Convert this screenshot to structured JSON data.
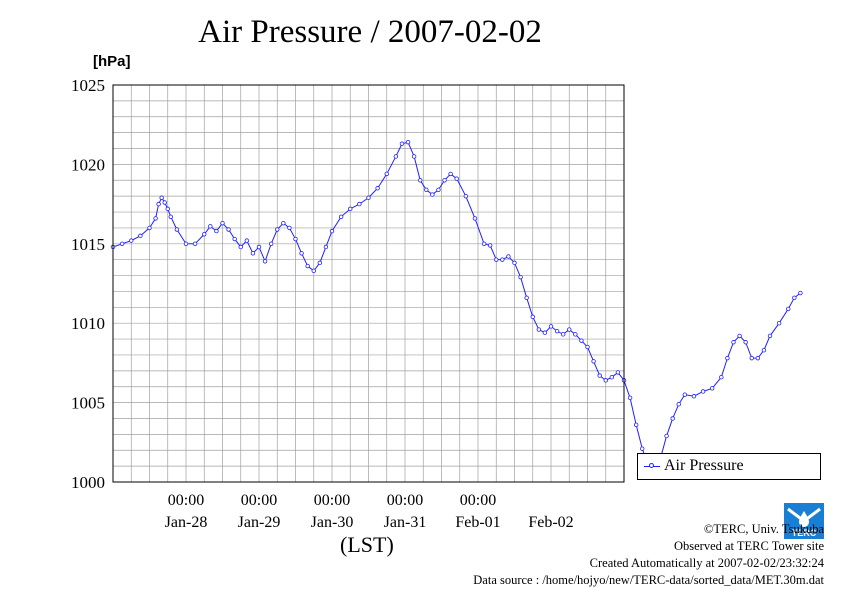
{
  "chart_data": {
    "type": "line",
    "title": "Air Pressure / 2007-02-02",
    "ylabel": "[hPa]",
    "xlabel": "(LST)",
    "ylim": [
      1000,
      1025
    ],
    "yticks": [
      1000,
      1005,
      1010,
      1015,
      1020,
      1025
    ],
    "xlim": [
      "2007-01-27T00:00",
      "2007-02-03T00:00"
    ],
    "xtick_top_labels": [
      "00:00",
      "00:00",
      "00:00",
      "00:00",
      "00:00"
    ],
    "xtick_bottom_labels": [
      "Jan-28",
      "Jan-29",
      "Jan-30",
      "Jan-31",
      "Feb-01",
      "Feb-02"
    ],
    "grid": true,
    "legend_position": "lower-right outside",
    "series": [
      {
        "name": "Air Pressure",
        "color": "#2020ff",
        "marker": "open-circle",
        "points": [
          [
            "2007-01-27T00:00",
            1014.8
          ],
          [
            "2007-01-27T03:00",
            1015.0
          ],
          [
            "2007-01-27T06:00",
            1015.2
          ],
          [
            "2007-01-27T09:00",
            1015.5
          ],
          [
            "2007-01-27T12:00",
            1016.0
          ],
          [
            "2007-01-27T14:00",
            1016.6
          ],
          [
            "2007-01-27T15:00",
            1017.5
          ],
          [
            "2007-01-27T16:00",
            1017.9
          ],
          [
            "2007-01-27T17:00",
            1017.6
          ],
          [
            "2007-01-27T18:00",
            1017.2
          ],
          [
            "2007-01-27T19:00",
            1016.7
          ],
          [
            "2007-01-27T21:00",
            1015.9
          ],
          [
            "2007-01-28T00:00",
            1015.0
          ],
          [
            "2007-01-28T03:00",
            1015.0
          ],
          [
            "2007-01-28T06:00",
            1015.6
          ],
          [
            "2007-01-28T08:00",
            1016.1
          ],
          [
            "2007-01-28T10:00",
            1015.8
          ],
          [
            "2007-01-28T12:00",
            1016.3
          ],
          [
            "2007-01-28T14:00",
            1015.9
          ],
          [
            "2007-01-28T16:00",
            1015.3
          ],
          [
            "2007-01-28T18:00",
            1014.8
          ],
          [
            "2007-01-28T20:00",
            1015.2
          ],
          [
            "2007-01-28T22:00",
            1014.4
          ],
          [
            "2007-01-29T00:00",
            1014.8
          ],
          [
            "2007-01-29T02:00",
            1013.9
          ],
          [
            "2007-01-29T04:00",
            1015.0
          ],
          [
            "2007-01-29T06:00",
            1015.9
          ],
          [
            "2007-01-29T08:00",
            1016.3
          ],
          [
            "2007-01-29T10:00",
            1016.0
          ],
          [
            "2007-01-29T12:00",
            1015.3
          ],
          [
            "2007-01-29T14:00",
            1014.4
          ],
          [
            "2007-01-29T16:00",
            1013.6
          ],
          [
            "2007-01-29T18:00",
            1013.3
          ],
          [
            "2007-01-29T20:00",
            1013.8
          ],
          [
            "2007-01-29T22:00",
            1014.8
          ],
          [
            "2007-01-30T00:00",
            1015.8
          ],
          [
            "2007-01-30T03:00",
            1016.7
          ],
          [
            "2007-01-30T06:00",
            1017.2
          ],
          [
            "2007-01-30T09:00",
            1017.5
          ],
          [
            "2007-01-30T12:00",
            1017.9
          ],
          [
            "2007-01-30T15:00",
            1018.5
          ],
          [
            "2007-01-30T18:00",
            1019.4
          ],
          [
            "2007-01-30T21:00",
            1020.5
          ],
          [
            "2007-01-30T23:00",
            1021.3
          ],
          [
            "2007-01-31T01:00",
            1021.4
          ],
          [
            "2007-01-31T03:00",
            1020.5
          ],
          [
            "2007-01-31T05:00",
            1019.0
          ],
          [
            "2007-01-31T07:00",
            1018.4
          ],
          [
            "2007-01-31T09:00",
            1018.1
          ],
          [
            "2007-01-31T11:00",
            1018.4
          ],
          [
            "2007-01-31T13:00",
            1019.0
          ],
          [
            "2007-01-31T15:00",
            1019.4
          ],
          [
            "2007-01-31T17:00",
            1019.1
          ],
          [
            "2007-01-31T20:00",
            1018.0
          ],
          [
            "2007-01-31T23:00",
            1016.6
          ],
          [
            "2007-02-01T02:00",
            1015.0
          ],
          [
            "2007-02-01T04:00",
            1014.9
          ],
          [
            "2007-02-01T06:00",
            1014.0
          ],
          [
            "2007-02-01T08:00",
            1014.0
          ],
          [
            "2007-02-01T10:00",
            1014.2
          ],
          [
            "2007-02-01T12:00",
            1013.8
          ],
          [
            "2007-02-01T14:00",
            1012.9
          ],
          [
            "2007-02-01T16:00",
            1011.6
          ],
          [
            "2007-02-01T18:00",
            1010.4
          ],
          [
            "2007-02-01T20:00",
            1009.6
          ],
          [
            "2007-02-01T22:00",
            1009.4
          ],
          [
            "2007-02-02T00:00",
            1009.8
          ],
          [
            "2007-02-02T02:00",
            1009.5
          ],
          [
            "2007-02-02T04:00",
            1009.3
          ],
          [
            "2007-02-02T06:00",
            1009.6
          ],
          [
            "2007-02-02T08:00",
            1009.3
          ],
          [
            "2007-02-02T10:00",
            1008.9
          ],
          [
            "2007-02-02T12:00",
            1008.5
          ],
          [
            "2007-02-02T14:00",
            1007.6
          ],
          [
            "2007-02-02T16:00",
            1006.7
          ],
          [
            "2007-02-02T18:00",
            1006.4
          ],
          [
            "2007-02-02T20:00",
            1006.6
          ],
          [
            "2007-02-02T22:00",
            1006.9
          ],
          [
            "2007-02-03T00:00",
            1006.4
          ],
          [
            "2007-02-03T02:00",
            1005.3
          ],
          [
            "2007-02-03T04:00",
            1003.6
          ],
          [
            "2007-02-03T06:00",
            1002.1
          ],
          [
            "2007-02-03T08:00",
            1001.0
          ],
          [
            "2007-02-03T10:00",
            1000.9
          ],
          [
            "2007-02-03T12:00",
            1001.5
          ],
          [
            "2007-02-03T14:00",
            1002.9
          ],
          [
            "2007-02-03T16:00",
            1004.0
          ],
          [
            "2007-02-03T18:00",
            1004.9
          ],
          [
            "2007-02-03T20:00",
            1005.5
          ],
          [
            "2007-02-03T23:00",
            1005.4
          ],
          [
            "2007-02-04T02:00",
            1005.7
          ],
          [
            "2007-02-04T05:00",
            1005.9
          ],
          [
            "2007-02-04T08:00",
            1006.6
          ],
          [
            "2007-02-04T10:00",
            1007.8
          ],
          [
            "2007-02-04T12:00",
            1008.8
          ],
          [
            "2007-02-04T14:00",
            1009.2
          ],
          [
            "2007-02-04T16:00",
            1008.8
          ],
          [
            "2007-02-04T18:00",
            1007.8
          ],
          [
            "2007-02-04T20:00",
            1007.8
          ],
          [
            "2007-02-04T22:00",
            1008.3
          ],
          [
            "2007-02-05T00:00",
            1009.2
          ],
          [
            "2007-02-05T03:00",
            1010.0
          ],
          [
            "2007-02-05T06:00",
            1010.9
          ],
          [
            "2007-02-05T08:00",
            1011.6
          ],
          [
            "2007-02-05T10:00",
            1011.9
          ]
        ]
      }
    ]
  },
  "footer": {
    "copyright": "©TERC, Univ. Tsukuba",
    "observed": "Observed at TERC Tower site",
    "created": "Created Automatically at 2007-02-02/23:32:24",
    "source": "Data source : /home/hojyo/new/TERC-data/sorted_data/MET.30m.dat"
  },
  "logo": {
    "text": "TERC",
    "color": "#1a7fd4"
  }
}
